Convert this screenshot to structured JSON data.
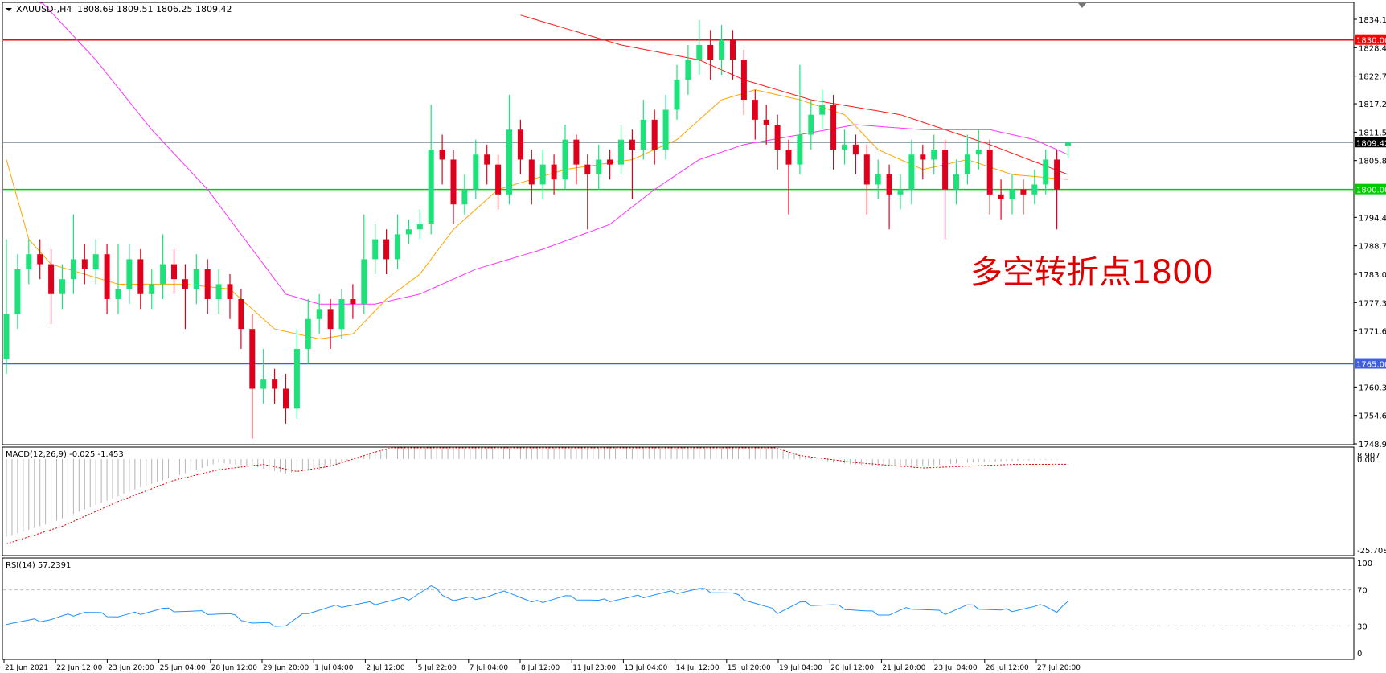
{
  "header": {
    "symbol": "XAUUSD-,H4",
    "ohlc": "1808.69 1809.51 1806.25 1809.42"
  },
  "annotation": "多空转折点1800",
  "colors": {
    "bull": "#1de27a",
    "bear": "#e0001b",
    "ma_red": "#ff1a1a",
    "ma_magenta": "#ff33ff",
    "ma_orange": "#ffa500",
    "level_1830": "#ff0000",
    "level_1800": "#00cc00",
    "level_1765": "#3d5fe0",
    "current": "#000000",
    "rsi": "#1e90ff",
    "macd_signal": "#e00000",
    "macd_hist": "#b4b4b4"
  },
  "chart_data": {
    "type": "candlestick",
    "price_axis": {
      "ticks": [
        "1834.15",
        "1828.45",
        "1822.75",
        "1817.20",
        "1811.50",
        "1805.80",
        "1794.40",
        "1788.70",
        "1783.00",
        "1777.30",
        "1771.60",
        "1760.35",
        "1754.65",
        "1748.95"
      ],
      "range": [
        1748.95,
        1834.15
      ]
    },
    "levels": [
      {
        "value": 1830.0,
        "label": "1830.00",
        "color_key": "level_1830"
      },
      {
        "value": 1800.0,
        "label": "1800.00",
        "color_key": "level_1800"
      },
      {
        "value": 1765.0,
        "label": "1765.00",
        "color_key": "level_1765"
      }
    ],
    "current_price": {
      "value": 1809.42,
      "label": "1809.42"
    },
    "candles": [
      [
        1766,
        1790,
        1763,
        1775
      ],
      [
        1775,
        1787,
        1772,
        1784
      ],
      [
        1784,
        1790,
        1781,
        1787
      ],
      [
        1787,
        1790,
        1782,
        1785
      ],
      [
        1785,
        1788,
        1773,
        1779
      ],
      [
        1779,
        1785,
        1776,
        1782
      ],
      [
        1782,
        1795,
        1779,
        1786
      ],
      [
        1786,
        1789,
        1781,
        1784
      ],
      [
        1784,
        1790,
        1781,
        1787
      ],
      [
        1787,
        1789,
        1775,
        1778
      ],
      [
        1778,
        1789,
        1775,
        1780
      ],
      [
        1780,
        1789,
        1777,
        1786
      ],
      [
        1786,
        1788,
        1776,
        1779
      ],
      [
        1779,
        1784,
        1776,
        1781
      ],
      [
        1781,
        1791,
        1778,
        1785
      ],
      [
        1785,
        1788,
        1779,
        1782
      ],
      [
        1782,
        1785,
        1772,
        1780
      ],
      [
        1780,
        1787,
        1777,
        1784
      ],
      [
        1784,
        1786,
        1775,
        1778
      ],
      [
        1778,
        1784,
        1775,
        1781
      ],
      [
        1781,
        1783,
        1774,
        1778
      ],
      [
        1778,
        1780,
        1768,
        1772
      ],
      [
        1772,
        1775,
        1750,
        1760
      ],
      [
        1760,
        1768,
        1757,
        1762
      ],
      [
        1762,
        1764,
        1757,
        1760
      ],
      [
        1760,
        1763,
        1753,
        1756
      ],
      [
        1756,
        1772,
        1754,
        1768
      ],
      [
        1768,
        1778,
        1765,
        1774
      ],
      [
        1774,
        1779,
        1771,
        1776
      ],
      [
        1776,
        1778,
        1768,
        1772
      ],
      [
        1772,
        1780,
        1770,
        1778
      ],
      [
        1778,
        1781,
        1774,
        1777
      ],
      [
        1777,
        1795,
        1775,
        1786
      ],
      [
        1786,
        1793,
        1783,
        1790
      ],
      [
        1790,
        1792,
        1783,
        1786
      ],
      [
        1786,
        1795,
        1784,
        1791
      ],
      [
        1791,
        1794,
        1789,
        1792
      ],
      [
        1792,
        1796,
        1790,
        1793
      ],
      [
        1793,
        1817,
        1791,
        1808
      ],
      [
        1808,
        1811,
        1801,
        1806
      ],
      [
        1806,
        1808,
        1793,
        1797
      ],
      [
        1797,
        1803,
        1795,
        1800
      ],
      [
        1800,
        1810,
        1798,
        1807
      ],
      [
        1807,
        1809,
        1801,
        1805
      ],
      [
        1805,
        1807,
        1796,
        1799
      ],
      [
        1799,
        1819,
        1797,
        1812
      ],
      [
        1812,
        1814,
        1803,
        1806
      ],
      [
        1806,
        1808,
        1797,
        1801
      ],
      [
        1801,
        1808,
        1798,
        1805
      ],
      [
        1805,
        1807,
        1799,
        1802
      ],
      [
        1802,
        1813,
        1800,
        1810
      ],
      [
        1810,
        1811,
        1801,
        1805
      ],
      [
        1805,
        1807,
        1792,
        1803
      ],
      [
        1803,
        1809,
        1800,
        1806
      ],
      [
        1806,
        1808,
        1802,
        1805
      ],
      [
        1805,
        1813,
        1803,
        1810
      ],
      [
        1810,
        1812,
        1798,
        1808
      ],
      [
        1808,
        1818,
        1806,
        1814
      ],
      [
        1814,
        1816,
        1805,
        1808
      ],
      [
        1808,
        1819,
        1806,
        1816
      ],
      [
        1816,
        1825,
        1814,
        1822
      ],
      [
        1822,
        1829,
        1819,
        1826
      ],
      [
        1826,
        1834,
        1823,
        1829
      ],
      [
        1829,
        1832,
        1822,
        1826
      ],
      [
        1826,
        1833,
        1823,
        1830
      ],
      [
        1830,
        1832,
        1822,
        1826
      ],
      [
        1826,
        1828,
        1815,
        1818
      ],
      [
        1818,
        1820,
        1810,
        1814
      ],
      [
        1814,
        1817,
        1809,
        1813
      ],
      [
        1813,
        1815,
        1804,
        1808
      ],
      [
        1808,
        1810,
        1795,
        1805
      ],
      [
        1805,
        1825,
        1803,
        1811
      ],
      [
        1811,
        1818,
        1808,
        1815
      ],
      [
        1815,
        1820,
        1812,
        1817
      ],
      [
        1817,
        1819,
        1804,
        1808
      ],
      [
        1808,
        1812,
        1805,
        1809
      ],
      [
        1809,
        1811,
        1803,
        1807
      ],
      [
        1807,
        1809,
        1795,
        1801
      ],
      [
        1801,
        1806,
        1798,
        1803
      ],
      [
        1803,
        1805,
        1792,
        1799
      ],
      [
        1799,
        1803,
        1796,
        1800
      ],
      [
        1800,
        1810,
        1797,
        1807
      ],
      [
        1807,
        1809,
        1802,
        1806
      ],
      [
        1806,
        1811,
        1803,
        1808
      ],
      [
        1808,
        1810,
        1790,
        1800
      ],
      [
        1800,
        1806,
        1797,
        1803
      ],
      [
        1803,
        1811,
        1801,
        1807
      ],
      [
        1807,
        1812,
        1804,
        1808
      ],
      [
        1808,
        1810,
        1795,
        1799
      ],
      [
        1799,
        1802,
        1794,
        1798
      ],
      [
        1798,
        1803,
        1795,
        1800
      ],
      [
        1800,
        1802,
        1795,
        1799
      ],
      [
        1799,
        1804,
        1797,
        1801
      ],
      [
        1801,
        1808,
        1799,
        1806
      ],
      [
        1806,
        1808,
        1792,
        1800
      ],
      [
        1808.69,
        1809.51,
        1806.25,
        1809.42
      ]
    ],
    "moving_averages": [
      {
        "color_key": "ma_red",
        "points": [
          [
            46,
            1835
          ],
          [
            55,
            1829
          ],
          [
            62,
            1826
          ],
          [
            66,
            1822
          ],
          [
            72,
            1818
          ],
          [
            80,
            1815
          ],
          [
            88,
            1809
          ],
          [
            95,
            1803
          ]
        ]
      },
      {
        "color_key": "ma_magenta",
        "points": [
          [
            3,
            1838
          ],
          [
            8,
            1826
          ],
          [
            13,
            1812
          ],
          [
            18,
            1800
          ],
          [
            22,
            1788
          ],
          [
            25,
            1779
          ],
          [
            28,
            1777
          ],
          [
            33,
            1777
          ],
          [
            37,
            1779
          ],
          [
            42,
            1784
          ],
          [
            48,
            1788
          ],
          [
            54,
            1793
          ],
          [
            58,
            1800
          ],
          [
            62,
            1806
          ],
          [
            66,
            1809
          ],
          [
            71,
            1811
          ],
          [
            76,
            1813
          ],
          [
            82,
            1812
          ],
          [
            88,
            1812
          ],
          [
            92,
            1810
          ],
          [
            95,
            1807
          ]
        ]
      },
      {
        "color_key": "ma_orange",
        "points": [
          [
            0,
            1806
          ],
          [
            2,
            1790
          ],
          [
            4,
            1785
          ],
          [
            10,
            1781
          ],
          [
            16,
            1781
          ],
          [
            20,
            1780
          ],
          [
            24,
            1772
          ],
          [
            28,
            1770
          ],
          [
            31,
            1771
          ],
          [
            34,
            1778
          ],
          [
            37,
            1783
          ],
          [
            40,
            1792
          ],
          [
            44,
            1800
          ],
          [
            50,
            1804
          ],
          [
            56,
            1806
          ],
          [
            60,
            1810
          ],
          [
            64,
            1818
          ],
          [
            67,
            1820
          ],
          [
            71,
            1818
          ],
          [
            75,
            1815
          ],
          [
            78,
            1808
          ],
          [
            82,
            1804
          ],
          [
            86,
            1806
          ],
          [
            90,
            1803
          ],
          [
            95,
            1802
          ]
        ]
      }
    ],
    "macd": {
      "label": "MACD(12,26,9) -0.025 -1.453",
      "ticks": [
        "8.907",
        "0.00",
        "-25.708"
      ],
      "range": [
        -25.708,
        8.907
      ],
      "histogram": [
        [
          0,
          -22
        ],
        [
          4,
          -18
        ],
        [
          8,
          -13
        ],
        [
          12,
          -8
        ],
        [
          16,
          -4
        ],
        [
          19,
          -1
        ],
        [
          22,
          -2
        ],
        [
          25,
          -4
        ],
        [
          28,
          -3
        ],
        [
          31,
          0
        ],
        [
          35,
          4
        ],
        [
          38,
          7
        ],
        [
          42,
          8.2
        ],
        [
          46,
          7
        ],
        [
          52,
          4
        ],
        [
          56,
          3
        ],
        [
          60,
          5
        ],
        [
          63,
          7
        ],
        [
          66,
          5
        ],
        [
          70,
          2
        ],
        [
          74,
          -1
        ],
        [
          78,
          -2
        ],
        [
          82,
          -2
        ],
        [
          86,
          -1
        ],
        [
          90,
          -0.5
        ],
        [
          95,
          -0.025
        ]
      ],
      "signal": [
        [
          0,
          -24
        ],
        [
          5,
          -19
        ],
        [
          10,
          -12
        ],
        [
          15,
          -6
        ],
        [
          19,
          -3
        ],
        [
          23,
          -1.5
        ],
        [
          26,
          -3.5
        ],
        [
          29,
          -2
        ],
        [
          33,
          2
        ],
        [
          38,
          6
        ],
        [
          43,
          8
        ],
        [
          48,
          6.5
        ],
        [
          54,
          4
        ],
        [
          59,
          4.5
        ],
        [
          64,
          7
        ],
        [
          67,
          5
        ],
        [
          71,
          1
        ],
        [
          76,
          -1
        ],
        [
          82,
          -2.5
        ],
        [
          86,
          -2
        ],
        [
          90,
          -1.5
        ],
        [
          95,
          -1.453
        ]
      ]
    },
    "rsi": {
      "label": "RSI(14) 57.2391",
      "ticks": [
        "100",
        "70",
        "30",
        "0"
      ],
      "levels": [
        70,
        30
      ],
      "values": [
        [
          0,
          33
        ],
        [
          4,
          37
        ],
        [
          7,
          45
        ],
        [
          10,
          40
        ],
        [
          14,
          48
        ],
        [
          17,
          45
        ],
        [
          20,
          42
        ],
        [
          22,
          33
        ],
        [
          25,
          30
        ],
        [
          27,
          45
        ],
        [
          30,
          52
        ],
        [
          33,
          55
        ],
        [
          36,
          60
        ],
        [
          38,
          73
        ],
        [
          40,
          58
        ],
        [
          43,
          62
        ],
        [
          45,
          68
        ],
        [
          47,
          55
        ],
        [
          50,
          62
        ],
        [
          53,
          57
        ],
        [
          56,
          61
        ],
        [
          59,
          66
        ],
        [
          62,
          70
        ],
        [
          65,
          65
        ],
        [
          67,
          55
        ],
        [
          69,
          45
        ],
        [
          71,
          55
        ],
        [
          74,
          52
        ],
        [
          77,
          45
        ],
        [
          79,
          42
        ],
        [
          81,
          50
        ],
        [
          84,
          44
        ],
        [
          86,
          52
        ],
        [
          89,
          46
        ],
        [
          92,
          50
        ],
        [
          93,
          53
        ],
        [
          94,
          45
        ],
        [
          95,
          57.24
        ]
      ]
    },
    "time_axis": [
      "21 Jun 2021",
      "22 Jun 12:00",
      "23 Jun 20:00",
      "25 Jun 04:00",
      "28 Jun 12:00",
      "29 Jun 20:00",
      "1 Jul 04:00",
      "2 Jul 12:00",
      "5 Jul 22:00",
      "7 Jul 04:00",
      "8 Jul 12:00",
      "11 Jul 23:00",
      "13 Jul 04:00",
      "14 Jul 12:00",
      "15 Jul 20:00",
      "19 Jul 04:00",
      "20 Jul 12:00",
      "21 Jul 20:00",
      "23 Jul 04:00",
      "26 Jul 12:00",
      "27 Jul 20:00"
    ]
  }
}
